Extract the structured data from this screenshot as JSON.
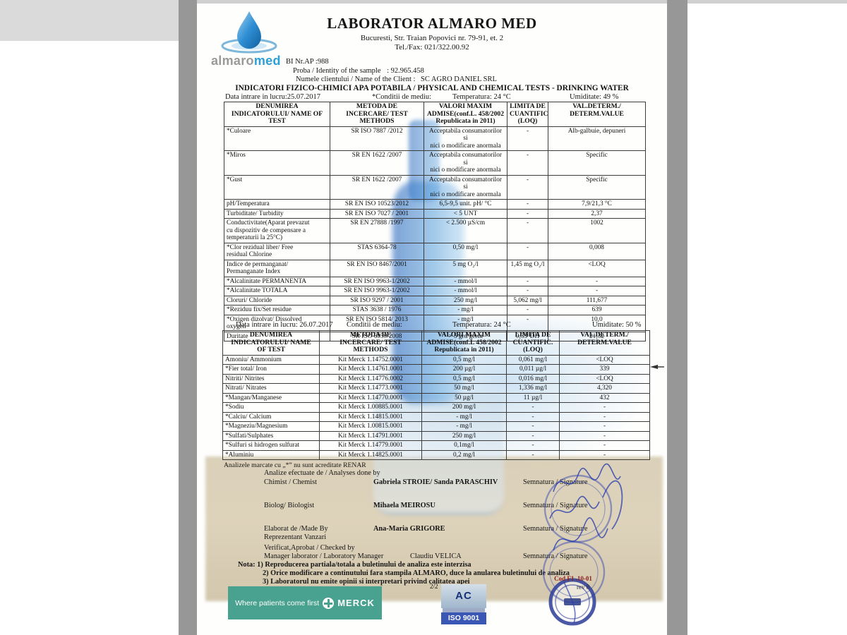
{
  "header": {
    "title": "LABORATOR ALMARO MED",
    "address": "Bucuresti, Str. Traian Popovici nr. 79-91, et. 2",
    "phone": "Tel./Fax: 021/322.00.92",
    "brand_gray": "almaro",
    "brand_blue": "med",
    "bi_number": "BI Nr.AP :988",
    "sample_label": "Proba / Identity of the sample",
    "sample_value": ": 92.965.458",
    "client_label": "Numele clientului / Name of the Client :",
    "client_value": "SC AGRO DANIEL SRL",
    "report_title": "INDICATORI FIZICO-CHIMICI APA POTABILA / PHYSICAL AND CHEMICAL TESTS - DRINKING WATER"
  },
  "conditions1": {
    "intake": "Data intrare in lucru:25.07.2017",
    "label": "*Conditii de mediu:",
    "temperature": "Temperatura: 24 °C",
    "humidity": "Umiditate: 49 %"
  },
  "table1": {
    "headers": [
      "DENUMIREA\nINDICATORULUI/ NAME OF\nTEST",
      "METODA DE\nINCERCARE/ TEST\nMETHODS",
      "VALORI MAXIM\nADMISE(conf.L. 458/2002\nRepublicata in 2011)",
      "LIMITA DE\nCUANTIFIC.\n(LOQ)",
      "VAL.DETERM./\nDETERM.VALUE"
    ],
    "rows": [
      [
        "*Culoare",
        "SR ISO 7887 /2012",
        "Acceptabila consumatorilor si\nnici o modificare anormala",
        "-",
        "Alb-galbuie, depuneri"
      ],
      [
        "*Miros",
        "SR EN 1622 /2007",
        "Acceptabila consumatorilor si\nnici o modificare anormala",
        "-",
        "Specific"
      ],
      [
        "*Gust",
        "SR EN 1622 /2007",
        "Acceptabila consumatorilor si\nnici o modificare anormala",
        "-",
        "Specific"
      ],
      [
        "pH/Temperatura",
        "SR EN ISO 10523/2012",
        "6,5-9,5 unit. pH/ °C",
        "-",
        "7,9/21,3 °C"
      ],
      [
        "Turbiditate/ Turbidity",
        "SR EN ISO 7027 / 2001",
        "< 5 UNT",
        "-",
        "2,37"
      ],
      [
        "Conductivitate(Aparat prevazut\ncu dispozitiv de compensare a\ntemperaturii la 25°C)",
        "SR EN 27888 /1997",
        "< 2.500 µS/cm",
        "-",
        "1002"
      ],
      [
        "*Clor rezidual liber/ Free\nresidual Chlorine",
        "STAS 6364-78",
        "0,50 mg/l",
        "-",
        "0,008"
      ],
      [
        "Indice de permanganat/\nPermanganate Index",
        "SR EN ISO 8467/2001",
        "5 mg O₂/l",
        "1,45 mg O₂/l",
        "<LOQ"
      ],
      [
        "*Alcalinitate PERMANENTA",
        "SR EN ISO 9963-1/2002",
        "- mmol/l",
        "-",
        "-"
      ],
      [
        "*Alcalinitate TOTALA",
        "SR EN ISO 9963-1/2002",
        "- mmol/l",
        "-",
        "-"
      ],
      [
        "Cloruri/ Chloride",
        "SR ISO 9297 / 2001",
        "250 mg/l",
        "5,062 mg/l",
        "111,677"
      ],
      [
        "*Reziduu fix/Set residue",
        "STAS 3638 / 1976",
        "- mg/l",
        "-",
        "639"
      ],
      [
        "*Oxigen dizolvat/ Dissolved\noxygen",
        "SR EN ISO 5814/ 2013",
        "- mg/l",
        "-",
        "10,0"
      ],
      [
        "Duritate",
        "SR ISO 6059/2008",
        "> 5 grd germ",
        "0,33°DH",
        "21,32"
      ]
    ]
  },
  "conditions2": {
    "intake": "Data intrare in lucru: 26.07.2017",
    "label": "Conditii de mediu:",
    "temperature": "Temperatura: 24 °C",
    "humidity": "Umiditate: 50 %"
  },
  "table2": {
    "headers": [
      "DENUMIREA\nINDICATORULUI/ NAME\nOF TEST",
      "METODA DE\nINCERCARE/ TEST\nMETHODS",
      "VALORI MAXIM\nADMISE(conf.L 458/2002\nRepublicata in 2011)",
      "LIMITA DE\nCUANTIFIC.\n(LOQ)",
      "VAL.DETERM./\nDETERM.VALUE"
    ],
    "rows": [
      [
        "Amoniu/ Ammonium",
        "Kit Merck 1.14752.0001",
        "0,5 mg/l",
        "0,061 mg/l",
        "<LOQ"
      ],
      [
        "*Fier total/ Iron",
        "Kit Merck 1.14761.0001",
        "200 µg/l",
        "0,011 µg/l",
        "339"
      ],
      [
        "Nitriti/ Nitrites",
        "Kit Merck 1.14776.0002",
        "0,5 mg/l",
        "0,016 mg/l",
        "<LOQ"
      ],
      [
        "Nitrati/ Nitrates",
        "Kit Merck 1.14773.0001",
        "50 mg/l",
        "1,336 mg/l",
        "4,320"
      ],
      [
        "*Mangan/Manganese",
        "Kit Merck 1.14770.0001",
        "50 µg/l",
        "11 µg/l",
        "432"
      ],
      [
        "*Sodiu",
        "Kit Merck 1.00885.0001",
        "200 mg/l",
        "-",
        "-"
      ],
      [
        "*Calciu/ Calcium",
        "Kit Merck 1.14815.0001",
        "- mg/l",
        "-",
        "-"
      ],
      [
        "*Magneziu/Magnesium",
        "Kit Merck 1.00815.0001",
        "- mg/l",
        "-",
        "-"
      ],
      [
        "*Sulfati/Sulphates",
        "Kit Merck 1.14791.0001",
        "250 mg/l",
        "-",
        "-"
      ],
      [
        "*Sulfuri si hidrogen sulfurat",
        "Kit Merck 1.14779.0001",
        "0,1mg/l",
        "-",
        "-"
      ],
      [
        "*Aluminiu",
        "Kit Merck 1.14825.0001",
        "0,2 mg/l",
        "-",
        "-"
      ]
    ]
  },
  "renar_note": "Analizele marcate cu „*” nu sunt acreditate RENAR",
  "signatures": {
    "section_label": "Analize efectuate de / Analyses done by",
    "rows": [
      {
        "role": "Chimist / Chemist",
        "name": "Gabriela STROIE/ Sanda PARASCHIV",
        "sig": "Semnatura / Signature"
      },
      {
        "role": "Biolog/ Biologist",
        "name": "Mihaela MEIROSU",
        "sig": "Semnatura / Signature"
      },
      {
        "role": "Elaborat de /Made By",
        "role2": "Reprezentant Vanzari",
        "name": "Ana-Maria GRIGORE",
        "sig": "Semnatura / Signature"
      }
    ],
    "checked_label": "Verificat,Aprobat / Checked by",
    "checked_row": {
      "role": "Manager laborator / Laboratory Manager",
      "name": "Claudiu VELICA",
      "sig": "Semnatura / Signature"
    }
  },
  "notes": [
    "Nota: 1) Reproducerea partiala/totala a buletinului de analiza este interzisa",
    "2) Orice modificare a continutului fara stampila ALMARO, duce la anularea buletinului de analiza",
    "3) Laboratorul nu emite opinii si interpretari privind calitatea apei"
  ],
  "page_number": "2/2",
  "footer": {
    "merck_tagline": "Where patients come first",
    "merck_name": "MERCK",
    "iso_top": "AC",
    "iso_bottom": "ISO 9001",
    "seal_cod": "Cod F1 .10-01",
    "seal_rev": "rev 8"
  },
  "colors": {
    "merck_green": "#49a18f",
    "iso_blue": "#3a57b5",
    "seal_navy": "#2c3c96",
    "stamp_blue": "#2b3fae",
    "brand_blue": "#2b9fd8",
    "brand_gray": "#9a9a9a"
  }
}
